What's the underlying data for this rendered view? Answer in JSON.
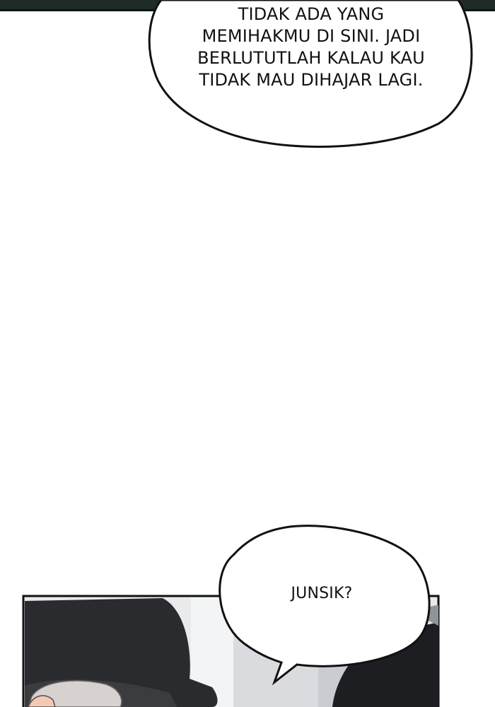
{
  "panels": {
    "top_panel_bg": "#1e2b28",
    "bottom_panel_bg": "#e9eaec"
  },
  "bubbles": {
    "top": {
      "lines": [
        "TIDAK ADA YANG",
        "MEMIHAKMU DI SINI. JADI",
        "BERLUTUTLAH KALAU KAU",
        "TIDAK MAU DIHAJAR LAGI."
      ]
    },
    "bottom": {
      "text": "JUNSIK?"
    }
  }
}
